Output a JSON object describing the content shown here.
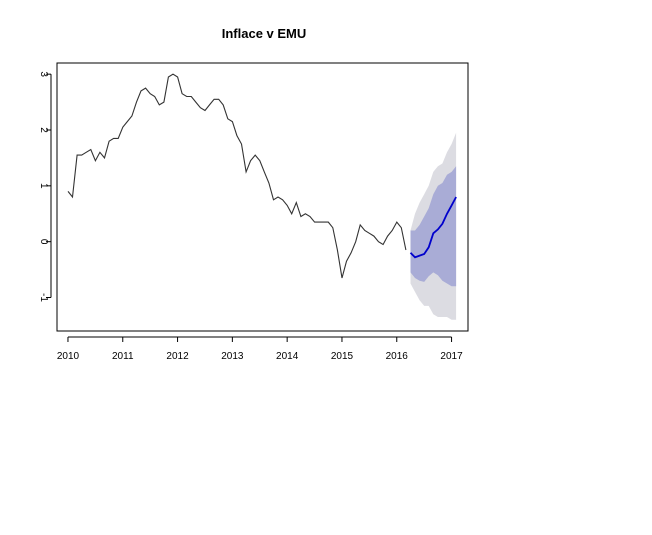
{
  "chart_data": {
    "type": "line",
    "title": "Inflace v EMU",
    "xlabel": "",
    "ylabel": "",
    "xlim": [
      2009.8,
      2017.3
    ],
    "ylim": [
      -1.6,
      3.2
    ],
    "x_ticks": [
      2010,
      2011,
      2012,
      2013,
      2014,
      2015,
      2016,
      2017
    ],
    "x_tick_labels": [
      "2010",
      "2011",
      "2012",
      "2013",
      "2014",
      "2015",
      "2016",
      "2017"
    ],
    "y_ticks": [
      -1,
      0,
      1,
      2,
      3
    ],
    "y_tick_labels": [
      "-1",
      "0",
      "1",
      "2",
      "3"
    ],
    "grid": false,
    "colors": {
      "history": "#333333",
      "forecast": "#0000cc",
      "band_80": "#a9acd6",
      "band_95": "#dcdce2"
    },
    "series": [
      {
        "role": "history",
        "x": [
          2010.0,
          2010.083,
          2010.167,
          2010.25,
          2010.333,
          2010.417,
          2010.5,
          2010.583,
          2010.667,
          2010.75,
          2010.833,
          2010.917,
          2011.0,
          2011.083,
          2011.167,
          2011.25,
          2011.333,
          2011.417,
          2011.5,
          2011.583,
          2011.667,
          2011.75,
          2011.833,
          2011.917,
          2012.0,
          2012.083,
          2012.167,
          2012.25,
          2012.333,
          2012.417,
          2012.5,
          2012.583,
          2012.667,
          2012.75,
          2012.833,
          2012.917,
          2013.0,
          2013.083,
          2013.167,
          2013.25,
          2013.333,
          2013.417,
          2013.5,
          2013.583,
          2013.667,
          2013.75,
          2013.833,
          2013.917,
          2014.0,
          2014.083,
          2014.167,
          2014.25,
          2014.333,
          2014.417,
          2014.5,
          2014.583,
          2014.667,
          2014.75,
          2014.833,
          2014.917,
          2015.0,
          2015.083,
          2015.167,
          2015.25,
          2015.333,
          2015.417,
          2015.5,
          2015.583,
          2015.667,
          2015.75,
          2015.833,
          2015.917,
          2016.0,
          2016.083,
          2016.167
        ],
        "values": [
          0.9,
          0.8,
          1.55,
          1.55,
          1.6,
          1.65,
          1.45,
          1.6,
          1.5,
          1.8,
          1.85,
          1.85,
          2.05,
          2.15,
          2.25,
          2.5,
          2.7,
          2.75,
          2.65,
          2.6,
          2.45,
          2.5,
          2.95,
          3.0,
          2.95,
          2.65,
          2.6,
          2.6,
          2.5,
          2.4,
          2.35,
          2.45,
          2.55,
          2.55,
          2.45,
          2.2,
          2.15,
          1.9,
          1.75,
          1.25,
          1.45,
          1.55,
          1.45,
          1.25,
          1.05,
          0.75,
          0.8,
          0.75,
          0.65,
          0.5,
          0.7,
          0.45,
          0.5,
          0.45,
          0.35,
          0.35,
          0.35,
          0.35,
          0.25,
          -0.15,
          -0.65,
          -0.35,
          -0.2,
          0.0,
          0.3,
          0.2,
          0.15,
          0.1,
          0.0,
          -0.05,
          0.1,
          0.2,
          0.35,
          0.25,
          -0.15
        ]
      },
      {
        "role": "forecast",
        "x": [
          2016.25,
          2016.333,
          2016.417,
          2016.5,
          2016.583,
          2016.667,
          2016.75,
          2016.833,
          2016.917,
          2017.0,
          2017.083
        ],
        "values": [
          -0.2,
          -0.28,
          -0.25,
          -0.22,
          -0.1,
          0.15,
          0.22,
          0.32,
          0.5,
          0.65,
          0.8
        ],
        "lower_80": [
          -0.55,
          -0.65,
          -0.7,
          -0.72,
          -0.62,
          -0.55,
          -0.6,
          -0.7,
          -0.75,
          -0.8,
          -0.8
        ],
        "upper_80": [
          0.2,
          0.2,
          0.3,
          0.45,
          0.6,
          0.85,
          1.0,
          1.05,
          1.2,
          1.25,
          1.35
        ],
        "lower_95": [
          -0.75,
          -0.9,
          -1.05,
          -1.15,
          -1.15,
          -1.3,
          -1.35,
          -1.35,
          -1.35,
          -1.4,
          -1.4
        ],
        "upper_95": [
          0.2,
          0.5,
          0.7,
          0.85,
          1.0,
          1.25,
          1.35,
          1.4,
          1.6,
          1.75,
          1.95
        ]
      }
    ]
  }
}
